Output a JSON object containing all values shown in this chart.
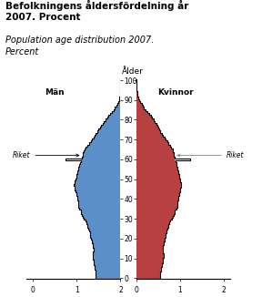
{
  "title_sv": "Befolkningens åldersfördelning år\n2007. Procent",
  "title_en": "Population age distribution 2007.\nPercent",
  "label_men": "Män",
  "label_women": "Kvinnor",
  "label_age": "Ålder",
  "label_riket": "Riket",
  "men": [
    0.58,
    0.57,
    0.57,
    0.57,
    0.58,
    0.59,
    0.6,
    0.61,
    0.62,
    0.62,
    0.63,
    0.64,
    0.64,
    0.63,
    0.62,
    0.62,
    0.63,
    0.64,
    0.65,
    0.66,
    0.68,
    0.69,
    0.7,
    0.7,
    0.71,
    0.73,
    0.75,
    0.76,
    0.78,
    0.8,
    0.84,
    0.86,
    0.88,
    0.9,
    0.91,
    0.94,
    0.96,
    0.97,
    0.97,
    0.97,
    0.98,
    0.99,
    1.0,
    1.01,
    1.02,
    1.04,
    1.05,
    1.06,
    1.05,
    1.04,
    1.02,
    1.01,
    1.0,
    0.99,
    0.98,
    0.97,
    0.96,
    0.95,
    0.93,
    0.91,
    0.9,
    0.88,
    0.87,
    0.86,
    0.84,
    0.82,
    0.79,
    0.76,
    0.72,
    0.68,
    0.65,
    0.62,
    0.59,
    0.56,
    0.53,
    0.5,
    0.47,
    0.44,
    0.41,
    0.38,
    0.34,
    0.3,
    0.27,
    0.23,
    0.2,
    0.16,
    0.13,
    0.1,
    0.08,
    0.06,
    0.04,
    0.03,
    0.02,
    0.01,
    0.01,
    0.0,
    0.0,
    0.0,
    0.0,
    0.0,
    0.0
  ],
  "women": [
    0.55,
    0.54,
    0.54,
    0.55,
    0.56,
    0.57,
    0.58,
    0.59,
    0.6,
    0.6,
    0.61,
    0.62,
    0.62,
    0.61,
    0.6,
    0.6,
    0.61,
    0.62,
    0.63,
    0.64,
    0.65,
    0.66,
    0.67,
    0.68,
    0.69,
    0.71,
    0.73,
    0.74,
    0.76,
    0.78,
    0.81,
    0.83,
    0.85,
    0.87,
    0.88,
    0.91,
    0.93,
    0.94,
    0.94,
    0.94,
    0.95,
    0.96,
    0.97,
    0.98,
    0.99,
    1.01,
    1.02,
    1.03,
    1.02,
    1.01,
    0.99,
    0.98,
    0.97,
    0.96,
    0.95,
    0.94,
    0.93,
    0.92,
    0.91,
    0.89,
    0.88,
    0.87,
    0.86,
    0.85,
    0.84,
    0.83,
    0.8,
    0.77,
    0.74,
    0.7,
    0.67,
    0.64,
    0.61,
    0.58,
    0.55,
    0.53,
    0.51,
    0.48,
    0.46,
    0.43,
    0.4,
    0.36,
    0.33,
    0.29,
    0.26,
    0.22,
    0.18,
    0.15,
    0.12,
    0.09,
    0.06,
    0.05,
    0.03,
    0.02,
    0.02,
    0.01,
    0.01,
    0.0,
    0.0,
    0.0,
    0.0
  ],
  "men_riket": [
    0.58,
    0.57,
    0.57,
    0.57,
    0.58,
    0.59,
    0.6,
    0.61,
    0.62,
    0.62,
    0.63,
    0.64,
    0.64,
    0.63,
    0.62,
    0.62,
    0.63,
    0.64,
    0.65,
    0.66,
    0.68,
    0.69,
    0.7,
    0.7,
    0.71,
    0.73,
    0.75,
    0.76,
    0.78,
    0.8,
    0.84,
    0.86,
    0.88,
    0.9,
    0.91,
    0.94,
    0.96,
    0.97,
    0.97,
    0.97,
    0.98,
    0.99,
    1.0,
    1.01,
    1.02,
    1.04,
    1.05,
    1.06,
    1.05,
    1.04,
    1.02,
    1.01,
    1.0,
    0.99,
    0.98,
    0.97,
    0.96,
    0.95,
    0.93,
    0.91,
    1.25,
    0.88,
    0.87,
    0.86,
    0.84,
    0.82,
    0.79,
    0.76,
    0.72,
    0.68,
    0.65,
    0.62,
    0.59,
    0.56,
    0.53,
    0.5,
    0.47,
    0.44,
    0.41,
    0.38,
    0.34,
    0.3,
    0.27,
    0.23,
    0.2,
    0.16,
    0.13,
    0.1,
    0.08,
    0.06,
    0.04,
    0.03,
    0.02,
    0.01,
    0.01,
    0.0,
    0.0,
    0.0,
    0.0,
    0.0,
    0.0
  ],
  "women_riket": [
    0.55,
    0.54,
    0.54,
    0.55,
    0.56,
    0.57,
    0.58,
    0.59,
    0.6,
    0.6,
    0.61,
    0.62,
    0.62,
    0.61,
    0.6,
    0.6,
    0.61,
    0.62,
    0.63,
    0.64,
    0.65,
    0.66,
    0.67,
    0.68,
    0.69,
    0.71,
    0.73,
    0.74,
    0.76,
    0.78,
    0.81,
    0.83,
    0.85,
    0.87,
    0.88,
    0.91,
    0.93,
    0.94,
    0.94,
    0.94,
    0.95,
    0.96,
    0.97,
    0.98,
    0.99,
    1.01,
    1.02,
    1.03,
    1.02,
    1.01,
    0.99,
    0.98,
    0.97,
    0.96,
    0.95,
    0.94,
    0.93,
    0.92,
    0.91,
    0.89,
    1.22,
    0.87,
    0.86,
    0.85,
    0.84,
    0.83,
    0.8,
    0.77,
    0.74,
    0.7,
    0.67,
    0.64,
    0.61,
    0.58,
    0.55,
    0.53,
    0.51,
    0.48,
    0.46,
    0.43,
    0.4,
    0.36,
    0.33,
    0.29,
    0.26,
    0.22,
    0.18,
    0.15,
    0.12,
    0.09,
    0.06,
    0.05,
    0.03,
    0.02,
    0.02,
    0.01,
    0.01,
    0.0,
    0.0,
    0.0,
    0.0
  ],
  "men_color": "#5b8fc9",
  "women_color": "#b94040",
  "riket_line_color": "#000000",
  "riket_line_color_w": "#888888",
  "background_color": "#ffffff",
  "xlim": 2.15,
  "yticks": [
    0,
    10,
    20,
    30,
    40,
    50,
    60,
    70,
    80,
    90,
    100
  ],
  "xticks": [
    0,
    1,
    2
  ],
  "riket_age_men": 62,
  "riket_age_women": 62
}
